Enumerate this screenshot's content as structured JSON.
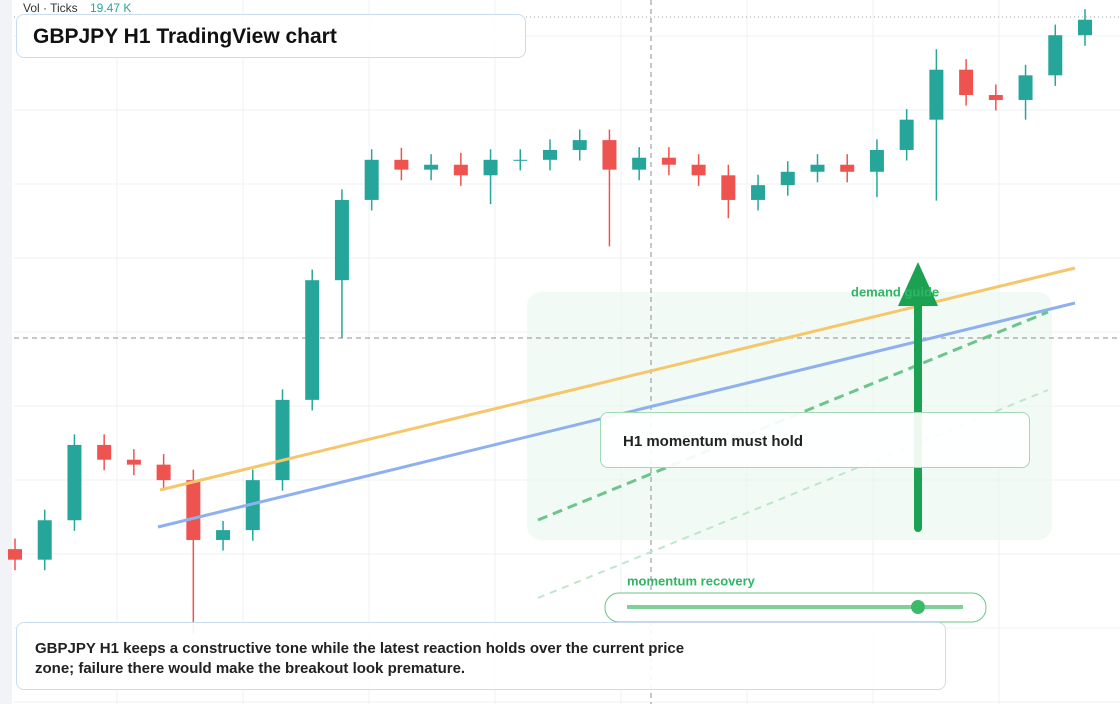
{
  "chart_data": {
    "type": "candlestick",
    "title": "GBPJPY H1 TradingView chart",
    "volume_label": "Vol · Ticks",
    "volume_value": "19.47 K",
    "annotations": {
      "zone": "demand guide",
      "callout": "H1 momentum must hold",
      "slider": "momentum recovery",
      "caption": "GBPJPY H1 keeps a constructive tone while the latest reaction holds over the current price zone; failure there would make the breakout look premature."
    },
    "open": [
      22.0,
      20.5,
      26.1,
      36.8,
      34.7,
      34.0,
      31.8,
      23.3,
      24.7,
      31.8,
      43.2,
      60.2,
      71.6,
      77.3,
      75.9,
      76.6,
      75.1,
      77.3,
      77.3,
      78.7,
      80.1,
      75.9,
      77.6,
      76.6,
      75.1,
      71.6,
      73.7,
      75.6,
      76.6,
      75.6,
      78.7,
      83.0,
      90.1,
      86.5,
      85.8,
      89.3,
      95.0
    ],
    "high": [
      23.5,
      27.6,
      38.3,
      38.3,
      36.2,
      35.5,
      33.3,
      26.0,
      33.3,
      44.7,
      61.7,
      73.1,
      78.8,
      79.0,
      78.1,
      78.3,
      78.8,
      78.8,
      80.2,
      81.6,
      81.6,
      79.1,
      79.1,
      78.1,
      76.6,
      75.2,
      77.1,
      78.1,
      78.1,
      80.2,
      84.5,
      93.0,
      91.6,
      88.0,
      90.8,
      96.5,
      98.7
    ],
    "low": [
      19.0,
      19.0,
      24.6,
      33.2,
      32.5,
      30.3,
      10.0,
      21.8,
      23.2,
      30.3,
      41.7,
      52.0,
      70.1,
      74.4,
      74.4,
      73.6,
      71.0,
      75.8,
      75.8,
      77.2,
      65.0,
      74.4,
      75.1,
      73.6,
      69.0,
      70.1,
      72.2,
      74.1,
      74.1,
      72.0,
      77.2,
      71.5,
      85.0,
      84.3,
      83.0,
      87.8,
      93.5
    ],
    "close": [
      20.5,
      26.1,
      36.8,
      34.7,
      34.0,
      31.8,
      23.3,
      24.7,
      31.8,
      43.2,
      60.2,
      71.6,
      77.3,
      75.9,
      76.6,
      75.1,
      77.3,
      77.3,
      78.7,
      80.1,
      75.9,
      77.6,
      76.6,
      75.1,
      71.6,
      73.7,
      75.6,
      76.6,
      75.6,
      78.7,
      83.0,
      90.1,
      86.5,
      85.8,
      89.3,
      95.0,
      97.2
    ],
    "ylim": [
      0,
      100
    ],
    "up_color": "#26a69a",
    "down_color": "#ef5350"
  }
}
